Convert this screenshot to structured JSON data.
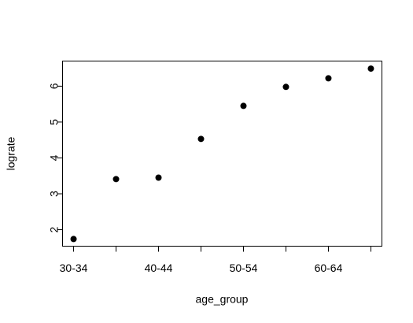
{
  "chart_data": {
    "type": "scatter",
    "x_label": "age_group",
    "y_label": "lograte",
    "categories": [
      "30-34",
      null,
      "40-44",
      null,
      "50-54",
      null,
      "60-64",
      null
    ],
    "values": [
      1.74,
      3.41,
      3.45,
      4.53,
      5.45,
      5.98,
      6.22,
      6.49
    ],
    "color": "#000000",
    "ylim": [
      1.54,
      6.7
    ],
    "yticks": [
      2,
      3,
      4,
      5,
      6
    ],
    "grid": false
  }
}
